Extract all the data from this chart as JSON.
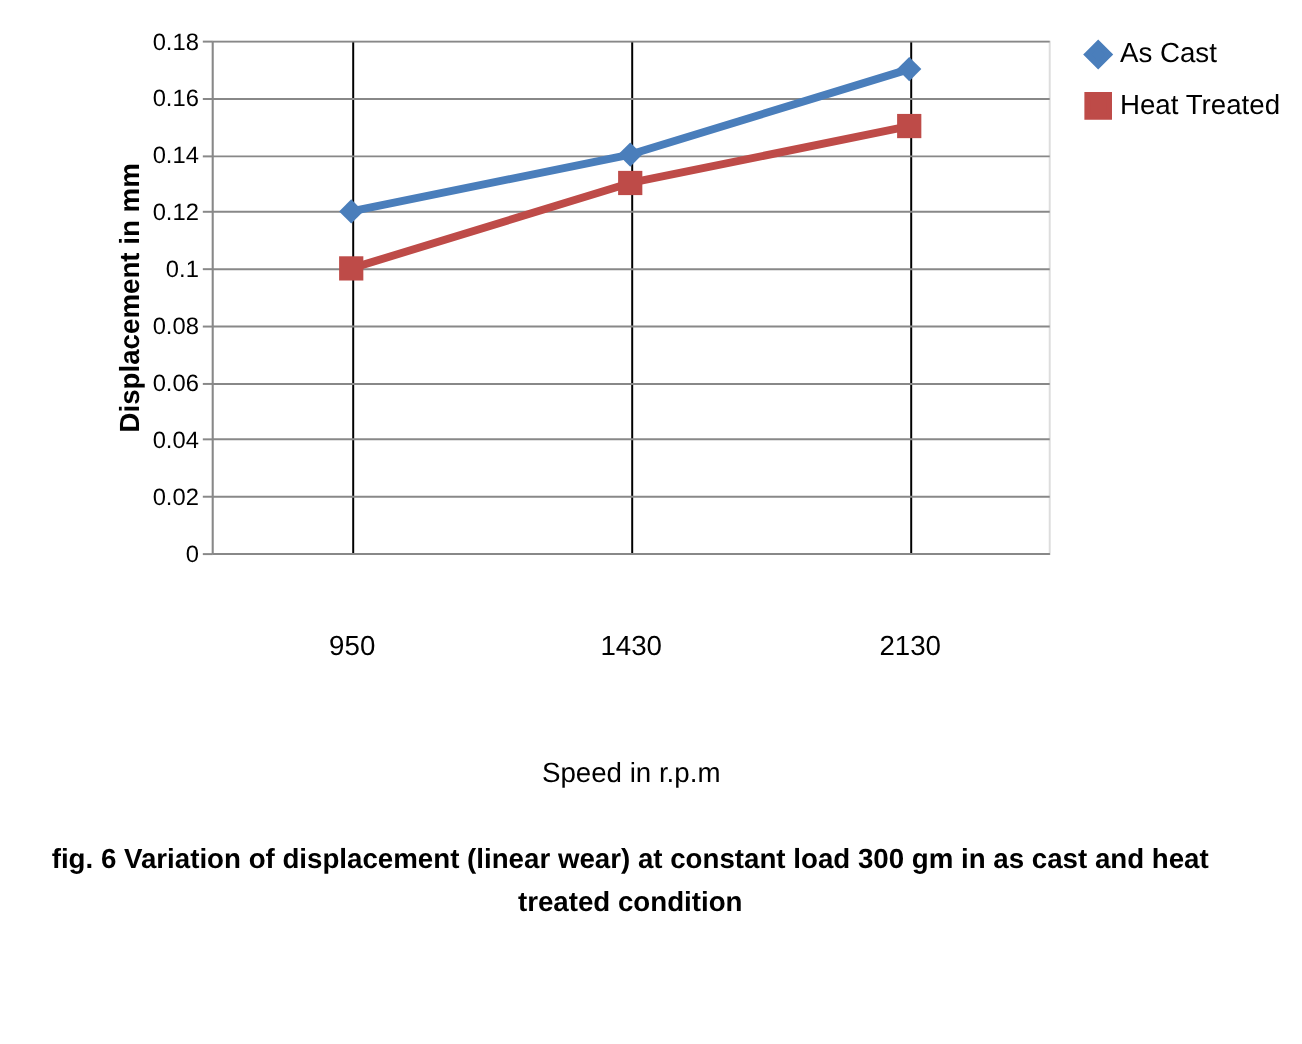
{
  "chart_data": {
    "type": "line",
    "ylabel": "Displacement in mm",
    "xlabel": "Speed in r.p.m",
    "categories": [
      "950",
      "1430",
      "2130"
    ],
    "series": [
      {
        "name": "As Cast",
        "color": "#4a7ebb",
        "marker": "diamond",
        "values": [
          0.12,
          0.14,
          0.17
        ]
      },
      {
        "name": "Heat Treated",
        "color": "#be4b48",
        "marker": "square",
        "values": [
          0.1,
          0.13,
          0.15
        ]
      }
    ],
    "ylim": [
      0,
      0.18
    ],
    "yticks": [
      0,
      0.02,
      0.04,
      0.06,
      0.08,
      0.1,
      0.12,
      0.14,
      0.16,
      0.18
    ],
    "grid": true,
    "legend": "right",
    "line_style": "solid",
    "annotations": [
      "fig. 6 Variation of displacement (linear wear) at constant load 300 gm in as cast and heat treated condition"
    ]
  }
}
